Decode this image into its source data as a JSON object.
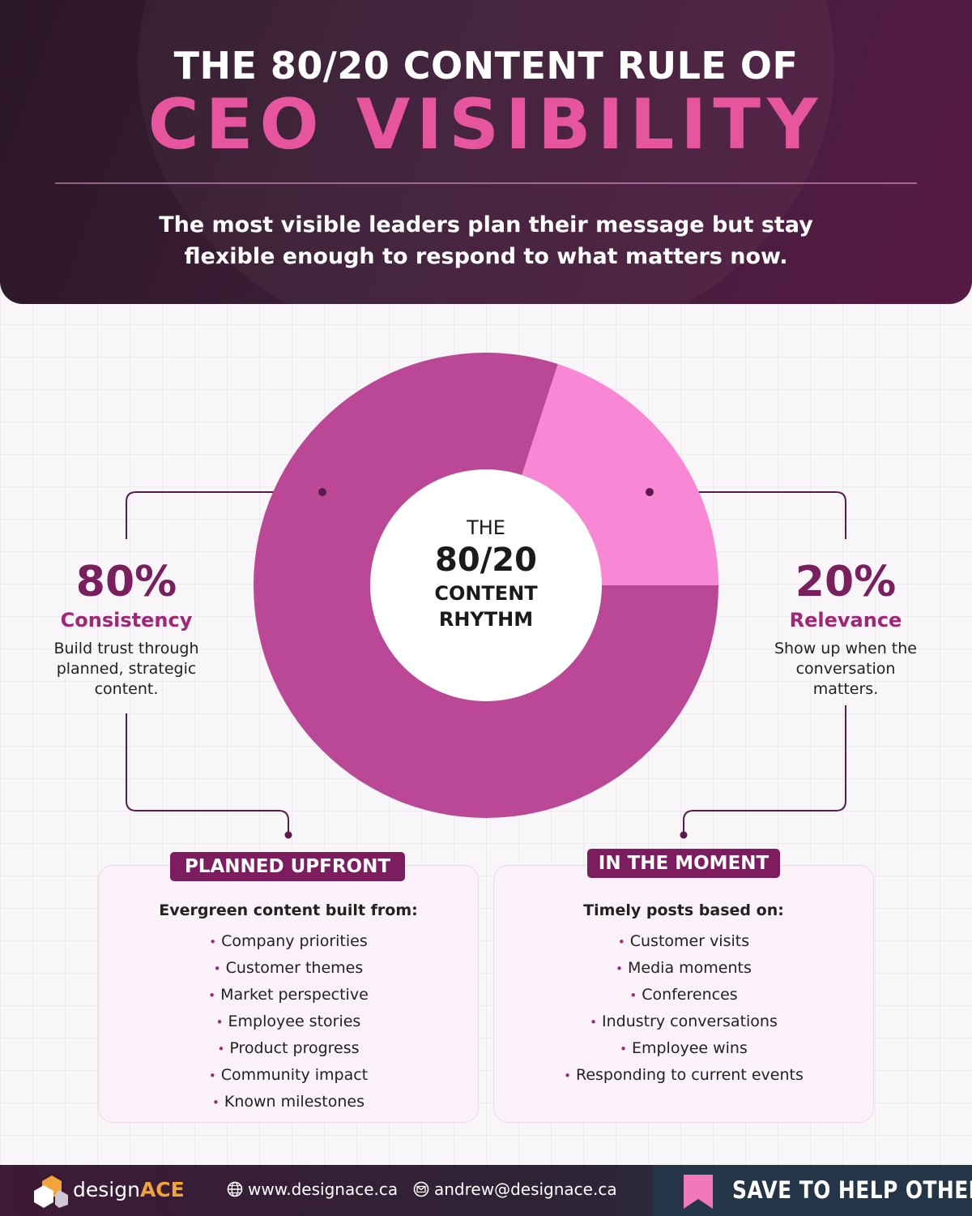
{
  "header": {
    "title_top": "THE 80/20 CONTENT RULE OF",
    "title_main": "CEO VISIBILITY",
    "subtitle_line1": "The most visible leaders plan their message but stay",
    "subtitle_line2": "flexible enough to respond to what matters now."
  },
  "chart_data": {
    "type": "pie",
    "style": "donut",
    "categories": [
      "Consistency",
      "Relevance"
    ],
    "values": [
      80,
      20
    ],
    "colors": [
      "#bb4896",
      "#f888d5"
    ],
    "center_label": {
      "line1": "THE",
      "line2": "80/20",
      "line3": "CONTENT",
      "line4": "RHYTHM"
    }
  },
  "left_stat": {
    "percent": "80%",
    "label": "Consistency",
    "desc_line1": "Build trust through",
    "desc_line2": "planned, strategic",
    "desc_line3": "content."
  },
  "right_stat": {
    "percent": "20%",
    "label": "Relevance",
    "desc_line1": "Show up when the",
    "desc_line2": "conversation",
    "desc_line3": "matters."
  },
  "panels": {
    "left": {
      "badge": "PLANNED UPFRONT",
      "heading": "Evergreen content built from:",
      "items": [
        "Company priorities",
        "Customer themes",
        "Market perspective",
        "Employee stories",
        "Product progress",
        "Community impact",
        "Known milestones"
      ]
    },
    "right": {
      "badge": "IN THE MOMENT",
      "heading": "Timely posts based on:",
      "items": [
        "Customer visits",
        "Media moments",
        "Conferences",
        "Industry conversations",
        "Employee wins",
        "Responding to current events"
      ]
    }
  },
  "footer": {
    "brand_main": "design",
    "brand_accent": "ACE",
    "website": "www.designace.ca",
    "email": "andrew@designace.ca",
    "save_cta": "SAVE TO HELP OTHERS",
    "icons": {
      "web": "globe-icon",
      "mail": "mail-icon",
      "save": "bookmark-icon"
    }
  },
  "colors": {
    "header_dark": "#2a1626",
    "accent_pink": "#e8559f",
    "plum": "#7a1f5e",
    "magenta": "#a32576",
    "brand_orange": "#f2a33a"
  }
}
